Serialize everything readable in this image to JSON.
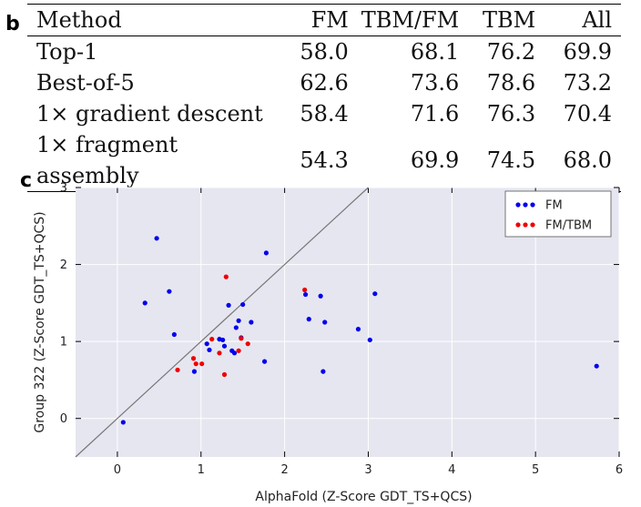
{
  "panel_b": {
    "label": "b",
    "headers": [
      "Method",
      "FM",
      "TBM/FM",
      "TBM",
      "All"
    ],
    "rows": [
      {
        "method": "Top-1",
        "fm": "58.0",
        "tbmfm": "68.1",
        "tbm": "76.2",
        "all": "69.9"
      },
      {
        "method": "Best-of-5",
        "fm": "62.6",
        "tbmfm": "73.6",
        "tbm": "78.6",
        "all": "73.2"
      },
      {
        "method": "1× gradient descent",
        "fm": "58.4",
        "tbmfm": "71.6",
        "tbm": "76.3",
        "all": "70.4"
      },
      {
        "method": "1× fragment assembly",
        "fm": "54.3",
        "tbmfm": "69.9",
        "tbm": "74.5",
        "all": "68.0"
      }
    ]
  },
  "panel_c": {
    "label": "c"
  },
  "chart_data": {
    "type": "scatter",
    "title": "",
    "xlabel": "AlphaFold (Z-Score GDT_TS+QCS)",
    "ylabel": "Group 322 (Z-Score GDT_TS+QCS)",
    "xlim": [
      -0.5,
      6
    ],
    "ylim": [
      -0.5,
      3
    ],
    "xticks": [
      "0",
      "1",
      "2",
      "3",
      "4",
      "5",
      "6"
    ],
    "yticks": [
      "0",
      "1",
      "2",
      "3"
    ],
    "grid": true,
    "legend_position": "top-right",
    "diagonal_line": true,
    "colors": {
      "FM": "#0000ee",
      "FM/TBM": "#ee0000",
      "background": "#e6e6f0",
      "grid": "#ffffff",
      "diagonal": "#777777"
    },
    "series": [
      {
        "name": "FM",
        "points": [
          [
            0.07,
            -0.05
          ],
          [
            0.47,
            2.34
          ],
          [
            0.33,
            1.5
          ],
          [
            0.62,
            1.65
          ],
          [
            0.68,
            1.09
          ],
          [
            0.92,
            0.61
          ],
          [
            1.07,
            0.97
          ],
          [
            1.1,
            0.89
          ],
          [
            1.22,
            1.03
          ],
          [
            1.26,
            1.02
          ],
          [
            1.28,
            0.94
          ],
          [
            1.33,
            1.47
          ],
          [
            1.37,
            0.88
          ],
          [
            1.4,
            0.85
          ],
          [
            1.42,
            1.18
          ],
          [
            1.45,
            1.27
          ],
          [
            1.48,
            1.05
          ],
          [
            1.5,
            1.48
          ],
          [
            1.6,
            1.25
          ],
          [
            1.76,
            0.74
          ],
          [
            1.78,
            2.15
          ],
          [
            2.25,
            1.61
          ],
          [
            2.29,
            1.29
          ],
          [
            2.43,
            1.59
          ],
          [
            2.46,
            0.61
          ],
          [
            2.48,
            1.25
          ],
          [
            2.88,
            1.16
          ],
          [
            3.02,
            1.02
          ],
          [
            3.08,
            1.62
          ],
          [
            5.73,
            0.68
          ]
        ]
      },
      {
        "name": "FM/TBM",
        "points": [
          [
            0.72,
            0.63
          ],
          [
            0.91,
            0.78
          ],
          [
            0.94,
            0.71
          ],
          [
            1.01,
            0.71
          ],
          [
            1.13,
            1.03
          ],
          [
            1.22,
            0.85
          ],
          [
            1.28,
            0.57
          ],
          [
            1.3,
            1.84
          ],
          [
            1.45,
            0.88
          ],
          [
            1.48,
            1.04
          ],
          [
            1.56,
            0.97
          ],
          [
            2.24,
            1.67
          ]
        ]
      }
    ]
  }
}
